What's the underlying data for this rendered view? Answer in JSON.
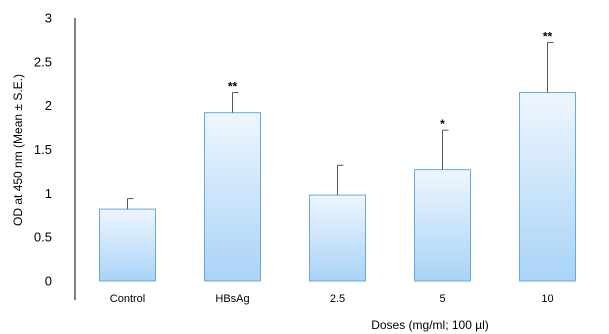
{
  "chart_data": {
    "type": "bar",
    "categories": [
      "Control",
      "HBsAg",
      "2.5",
      "5",
      "10"
    ],
    "values": [
      0.82,
      1.92,
      0.98,
      1.27,
      2.15
    ],
    "errors": [
      0.12,
      0.23,
      0.34,
      0.45,
      0.57
    ],
    "significance": [
      "",
      "**",
      "",
      "*",
      "**"
    ],
    "xlabel": "Doses (mg/ml; 100 µl)",
    "ylabel": "OD at 450 nm (Mean ± S.E.)",
    "ylim": [
      0,
      3
    ],
    "yticks": [
      "0",
      "0.5",
      "1",
      "1.5",
      "2",
      "2.5",
      "3"
    ],
    "grid": false,
    "colors": {
      "bar_top": "#eef6fd",
      "bar_bottom": "#a9d3f7",
      "bar_stroke": "#6aa9dc",
      "axis": "#000000",
      "error_bar": "#555555"
    }
  }
}
